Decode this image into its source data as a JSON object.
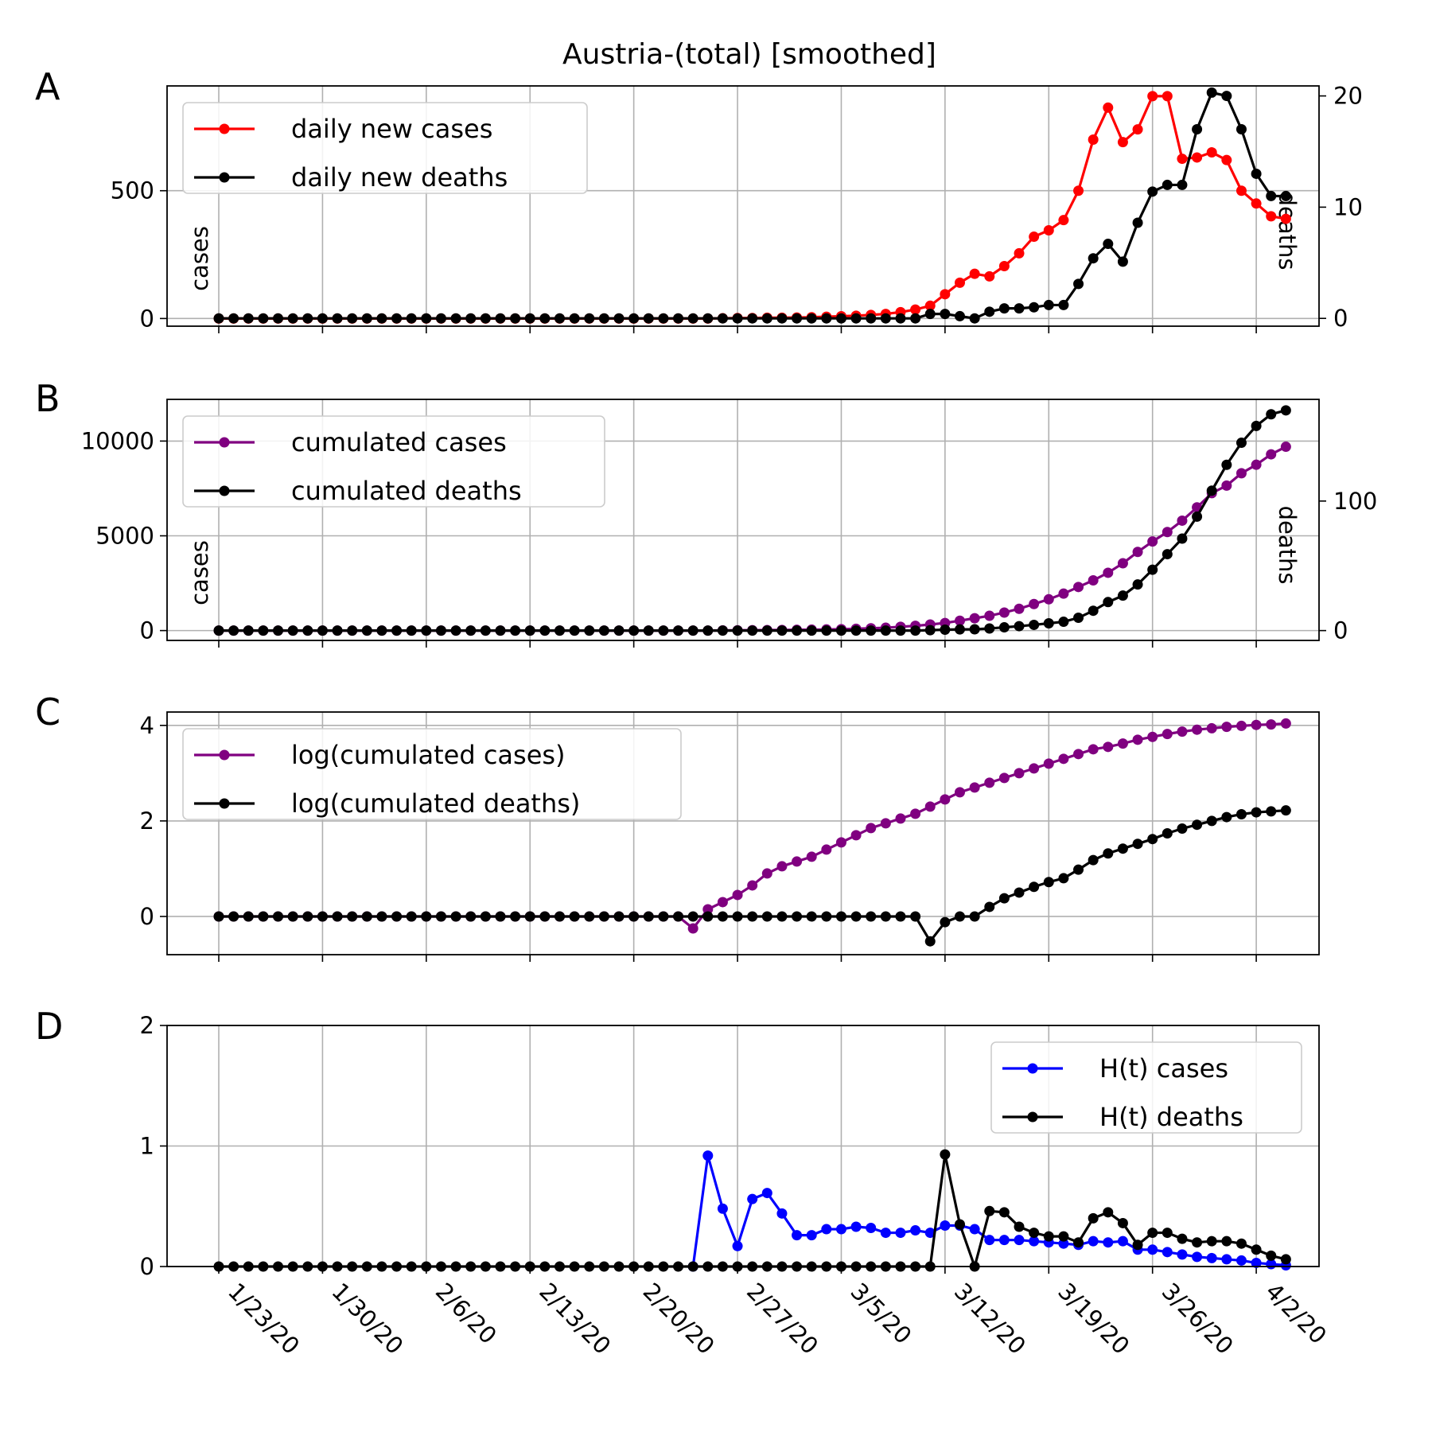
{
  "figure": {
    "title": "Austria-(total) [smoothed]",
    "x_tick_labels": [
      "1/23/20",
      "1/30/20",
      "2/6/20",
      "2/13/20",
      "2/20/20",
      "2/27/20",
      "3/5/20",
      "3/12/20",
      "3/19/20",
      "3/26/20",
      "4/2/20"
    ],
    "n_days": 73
  },
  "chart_data": [
    {
      "type": "line",
      "panel": "A",
      "x": "day index 0..72, day 0 = 1/23/20",
      "ylabel": "cases",
      "y2label": "deaths",
      "ylim": [
        -30,
        910
      ],
      "y2lim": [
        -0.7,
        20.9
      ],
      "yticks": [
        0,
        500
      ],
      "y2ticks": [
        0,
        10,
        20
      ],
      "grid": true,
      "legend": "upper left",
      "series": [
        {
          "name": "daily new cases",
          "color": "#ff0000",
          "axis": "left",
          "values": [
            0,
            0,
            0,
            0,
            0,
            0,
            0,
            0,
            0,
            0,
            0,
            0,
            0,
            0,
            0,
            0,
            0,
            0,
            0,
            0,
            0,
            0,
            0,
            0,
            0,
            0,
            0,
            0,
            0,
            0,
            0,
            0,
            0,
            0,
            1,
            2,
            2,
            3,
            3,
            4,
            5,
            7,
            9,
            11,
            14,
            18,
            25,
            35,
            50,
            95,
            140,
            175,
            165,
            205,
            255,
            320,
            345,
            385,
            500,
            700,
            825,
            690,
            740,
            870,
            870,
            625,
            630,
            650,
            620,
            500,
            450,
            400,
            390
          ]
        },
        {
          "name": "daily new deaths",
          "color": "#000000",
          "axis": "right",
          "values": [
            0,
            0,
            0,
            0,
            0,
            0,
            0,
            0,
            0,
            0,
            0,
            0,
            0,
            0,
            0,
            0,
            0,
            0,
            0,
            0,
            0,
            0,
            0,
            0,
            0,
            0,
            0,
            0,
            0,
            0,
            0,
            0,
            0,
            0,
            0,
            0,
            0,
            0,
            0,
            0,
            0,
            0,
            0,
            0,
            0,
            0,
            0,
            0,
            0.4,
            0.4,
            0.2,
            0,
            0.6,
            0.9,
            0.9,
            1,
            1.2,
            1.2,
            3.1,
            5.4,
            6.7,
            5.1,
            8.6,
            11.4,
            12,
            12,
            17,
            20.3,
            20,
            17,
            13,
            11,
            11
          ]
        }
      ]
    },
    {
      "type": "line",
      "panel": "B",
      "ylabel": "cases",
      "y2label": "deaths",
      "ylim": [
        -520,
        12200
      ],
      "y2lim": [
        -7.6,
        178.5
      ],
      "yticks": [
        0,
        5000,
        10000
      ],
      "y2ticks": [
        0,
        100
      ],
      "grid": true,
      "legend": "upper left",
      "series": [
        {
          "name": "cumulated cases",
          "color": "#800080",
          "axis": "left",
          "values": [
            0,
            0,
            0,
            0,
            0,
            0,
            0,
            0,
            0,
            0,
            0,
            0,
            0,
            0,
            0,
            0,
            0,
            0,
            0,
            0,
            0,
            0,
            0,
            0,
            0,
            0,
            0,
            0,
            0,
            0,
            0,
            0,
            0,
            0,
            10,
            15,
            20,
            25,
            30,
            40,
            50,
            60,
            75,
            95,
            120,
            150,
            200,
            250,
            320,
            400,
            520,
            650,
            780,
            950,
            1150,
            1400,
            1650,
            1950,
            2300,
            2650,
            3050,
            3550,
            4150,
            4700,
            5200,
            5800,
            6500,
            7250,
            7650,
            8300,
            8750,
            9300,
            9700
          ]
        },
        {
          "name": "cumulated deaths",
          "color": "#000000",
          "axis": "right",
          "values": [
            0,
            0,
            0,
            0,
            0,
            0,
            0,
            0,
            0,
            0,
            0,
            0,
            0,
            0,
            0,
            0,
            0,
            0,
            0,
            0,
            0,
            0,
            0,
            0,
            0,
            0,
            0,
            0,
            0,
            0,
            0,
            0,
            0,
            0,
            0,
            0,
            0,
            0,
            0,
            0,
            0,
            0,
            0,
            0,
            0,
            0,
            0,
            0,
            0.3,
            0.7,
            0.9,
            1,
            1.6,
            2.5,
            3.4,
            4.4,
            5.6,
            6.8,
            9.9,
            15.3,
            22,
            27,
            35.6,
            47,
            59,
            71,
            88,
            108,
            128,
            145,
            158,
            167,
            170
          ]
        }
      ]
    },
    {
      "type": "line",
      "panel": "C",
      "ylim": [
        -0.8,
        4.28
      ],
      "yticks": [
        0,
        2,
        4
      ],
      "grid": true,
      "legend": "upper left",
      "series": [
        {
          "name": "log(cumulated cases)",
          "color": "#800080",
          "values": [
            0,
            0,
            0,
            0,
            0,
            0,
            0,
            0,
            0,
            0,
            0,
            0,
            0,
            0,
            0,
            0,
            0,
            0,
            0,
            0,
            0,
            0,
            0,
            0,
            0,
            0,
            0,
            0,
            0,
            0,
            0,
            0,
            -0.25,
            0.15,
            0.3,
            0.45,
            0.65,
            0.9,
            1.05,
            1.15,
            1.25,
            1.4,
            1.55,
            1.7,
            1.85,
            1.95,
            2.05,
            2.15,
            2.3,
            2.45,
            2.6,
            2.7,
            2.8,
            2.9,
            3.0,
            3.1,
            3.2,
            3.3,
            3.4,
            3.5,
            3.55,
            3.62,
            3.7,
            3.76,
            3.82,
            3.87,
            3.91,
            3.94,
            3.97,
            3.99,
            4.01,
            4.02,
            4.04
          ]
        },
        {
          "name": "log(cumulated deaths)",
          "color": "#000000",
          "values": [
            0,
            0,
            0,
            0,
            0,
            0,
            0,
            0,
            0,
            0,
            0,
            0,
            0,
            0,
            0,
            0,
            0,
            0,
            0,
            0,
            0,
            0,
            0,
            0,
            0,
            0,
            0,
            0,
            0,
            0,
            0,
            0,
            0,
            0,
            0,
            0,
            0,
            0,
            0,
            0,
            0,
            0,
            0,
            0,
            0,
            0,
            0,
            0,
            -0.52,
            -0.12,
            0,
            0,
            0.2,
            0.38,
            0.5,
            0.62,
            0.72,
            0.8,
            0.98,
            1.18,
            1.32,
            1.42,
            1.52,
            1.62,
            1.74,
            1.84,
            1.92,
            2.0,
            2.08,
            2.14,
            2.18,
            2.2,
            2.22
          ]
        }
      ]
    },
    {
      "type": "line",
      "panel": "D",
      "ylim": [
        0,
        2
      ],
      "yticks": [
        0,
        1,
        2
      ],
      "grid": true,
      "legend": "upper right",
      "series": [
        {
          "name": "H(t) cases",
          "color": "#0000ff",
          "values": [
            null,
            null,
            null,
            null,
            null,
            null,
            null,
            null,
            null,
            null,
            null,
            null,
            null,
            null,
            null,
            null,
            null,
            null,
            null,
            null,
            null,
            null,
            null,
            null,
            null,
            null,
            null,
            null,
            null,
            null,
            null,
            null,
            0,
            0.92,
            0.48,
            0.17,
            0.56,
            0.61,
            0.44,
            0.26,
            0.26,
            0.31,
            0.31,
            0.33,
            0.32,
            0.28,
            0.28,
            0.3,
            0.28,
            0.34,
            0.34,
            0.31,
            0.22,
            0.22,
            0.22,
            0.21,
            0.2,
            0.19,
            0.18,
            0.21,
            0.2,
            0.21,
            0.14,
            0.14,
            0.12,
            0.1,
            0.08,
            0.07,
            0.06,
            0.05,
            0.03,
            0.02,
            0.01
          ]
        },
        {
          "name": "H(t) deaths",
          "color": "#000000",
          "values": [
            0,
            0,
            0,
            0,
            0,
            0,
            0,
            0,
            0,
            0,
            0,
            0,
            0,
            0,
            0,
            0,
            0,
            0,
            0,
            0,
            0,
            0,
            0,
            0,
            0,
            0,
            0,
            0,
            0,
            0,
            0,
            0,
            0,
            0,
            0,
            0,
            0,
            0,
            0,
            0,
            0,
            0,
            0,
            0,
            0,
            0,
            0,
            0,
            0,
            0.93,
            0.35,
            0,
            0.46,
            0.45,
            0.33,
            0.28,
            0.25,
            0.25,
            0.2,
            0.4,
            0.45,
            0.36,
            0.18,
            0.28,
            0.28,
            0.23,
            0.2,
            0.21,
            0.21,
            0.19,
            0.14,
            0.09,
            0.06
          ]
        }
      ]
    }
  ],
  "panel_letters": [
    "A",
    "B",
    "C",
    "D"
  ]
}
